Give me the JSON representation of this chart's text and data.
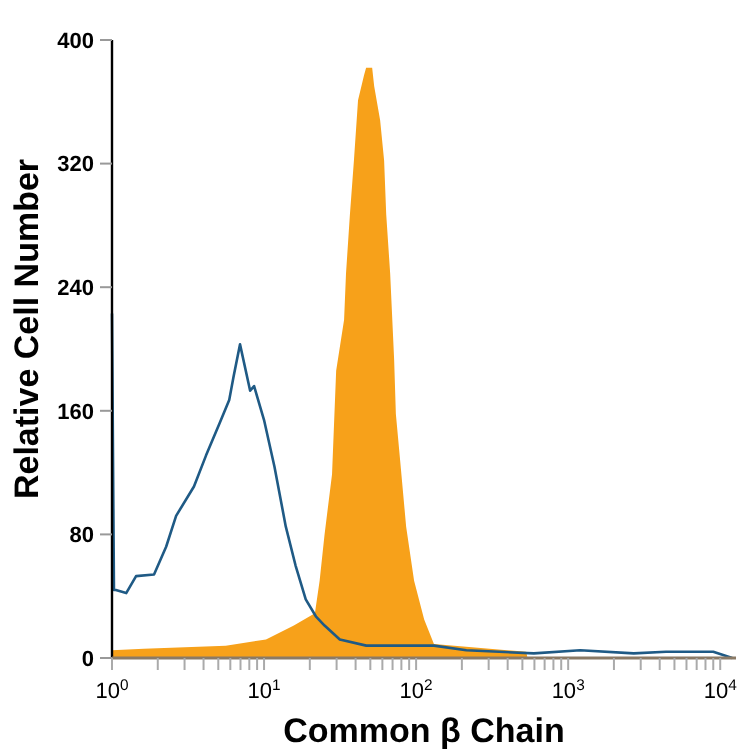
{
  "chart_data": {
    "type": "area",
    "xlabel": "Common β Chain",
    "ylabel": "Relative Cell Number",
    "log": "x",
    "xlim": [
      1,
      12700
    ],
    "ylim": [
      0,
      400
    ],
    "xticks": [
      {
        "value": 1,
        "label": "10$^{0}$"
      },
      {
        "value": 2,
        "label": null
      },
      {
        "value": 3,
        "label": null
      },
      {
        "value": 4,
        "label": null
      },
      {
        "value": 5,
        "label": null
      },
      {
        "value": 6,
        "label": null
      },
      {
        "value": 7,
        "label": null
      },
      {
        "value": 8,
        "label": null
      },
      {
        "value": 9,
        "label": null
      },
      {
        "value": 10,
        "label": "10$^{1}$"
      },
      {
        "value": 20,
        "label": null
      },
      {
        "value": 30,
        "label": null
      },
      {
        "value": 40,
        "label": null
      },
      {
        "value": 50,
        "label": null
      },
      {
        "value": 60,
        "label": null
      },
      {
        "value": 70,
        "label": null
      },
      {
        "value": 80,
        "label": null
      },
      {
        "value": 90,
        "label": null
      },
      {
        "value": 100,
        "label": "10$^{2}$"
      },
      {
        "value": 200,
        "label": null
      },
      {
        "value": 300,
        "label": null
      },
      {
        "value": 400,
        "label": null
      },
      {
        "value": 500,
        "label": null
      },
      {
        "value": 600,
        "label": null
      },
      {
        "value": 700,
        "label": null
      },
      {
        "value": 800,
        "label": null
      },
      {
        "value": 900,
        "label": null
      },
      {
        "value": 1000,
        "label": "10$^{3}$"
      },
      {
        "value": 2000,
        "label": null
      },
      {
        "value": 3000,
        "label": null
      },
      {
        "value": 4000,
        "label": null
      },
      {
        "value": 5000,
        "label": null
      },
      {
        "value": 6000,
        "label": null
      },
      {
        "value": 7000,
        "label": null
      },
      {
        "value": 8000,
        "label": null
      },
      {
        "value": 9000,
        "label": null
      },
      {
        "value": 10000,
        "label": "10$^{4}$"
      }
    ],
    "yticks": [
      0,
      80,
      160,
      240,
      320,
      400
    ],
    "series": [
      {
        "color": "#f7a11a",
        "x": [
          1,
          1.62,
          5.6,
          10.3,
          15.7,
          21.6,
          23.2,
          25,
          28,
          29.8,
          33.6,
          34.6,
          36.7,
          39,
          41.5,
          45.4,
          46.9,
          51.4,
          53,
          58,
          61.6,
          63.6,
          67.5,
          71.7,
          73.6,
          78.5,
          86,
          97,
          113,
          131,
          530,
          540
        ],
        "values": [
          5,
          6,
          8,
          12,
          21,
          29,
          50,
          80,
          119,
          186,
          219,
          249,
          287,
          322,
          361,
          377,
          382,
          382,
          370,
          348,
          322,
          287,
          249,
          193,
          158,
          128,
          85,
          50,
          25,
          9,
          4,
          0
        ]
      },
      {
        "type": "line",
        "color": "#1f5a85",
        "x": [
          1,
          1.03,
          1.06,
          1.24,
          1.44,
          1.89,
          2.27,
          2.64,
          3.46,
          4.15,
          5.1,
          5.9,
          6.3,
          6.95,
          8.1,
          8.6,
          10,
          11.7,
          13.9,
          16.1,
          18.8,
          21.9,
          25,
          31.5,
          47,
          131,
          214,
          595,
          1200,
          2700,
          4400,
          9000,
          12000
        ],
        "values": [
          223,
          44,
          44,
          42,
          53,
          54,
          72,
          92,
          111,
          131,
          152,
          167,
          182,
          203,
          173,
          176,
          154,
          124,
          85,
          60,
          38,
          27,
          21,
          12,
          8,
          8,
          5,
          3,
          5,
          3,
          4,
          4,
          0
        ]
      }
    ]
  }
}
